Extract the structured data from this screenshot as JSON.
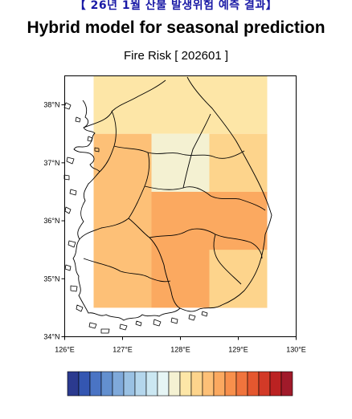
{
  "header": {
    "top_label": "【 26년 1월 산불 발생위험 예측 결과】",
    "title": "Hybrid model for seasonal prediction",
    "subtitle": "Fire Risk [ 202601 ]"
  },
  "map": {
    "lat_ticks": [
      "38°N",
      "37°N",
      "36°N",
      "35°N",
      "34°N"
    ],
    "lon_ticks": [
      "126°E",
      "127°E",
      "128°E",
      "129°E",
      "130°E"
    ],
    "grid_cells": [
      {
        "lon": [
          126.5,
          129.5
        ],
        "lat": [
          37.5,
          38.5
        ],
        "level": 0.53
      },
      {
        "lon": [
          126.5,
          127.5
        ],
        "lat": [
          34.5,
          37.5
        ],
        "level": 0.62
      },
      {
        "lon": [
          127.5,
          128.5
        ],
        "lat": [
          36.5,
          37.5
        ],
        "level": 0.46
      },
      {
        "lon": [
          128.5,
          129.5
        ],
        "lat": [
          36.5,
          37.5
        ],
        "level": 0.58
      },
      {
        "lon": [
          127.5,
          129.5
        ],
        "lat": [
          34.5,
          36.5
        ],
        "level": 0.66
      },
      {
        "lon": [
          128.5,
          129.5
        ],
        "lat": [
          34.5,
          35.5
        ],
        "level": 0.6
      }
    ]
  },
  "colorbar": {
    "colors": [
      "#2b3a8f",
      "#3456b1",
      "#4a74c4",
      "#6390cf",
      "#7fa9da",
      "#9ac1e3",
      "#b4d6ec",
      "#cbe7f2",
      "#e6f5f5",
      "#f4f1d2",
      "#fde6a7",
      "#fdd48c",
      "#fdc077",
      "#fba960",
      "#f8904c",
      "#f0743d",
      "#e4572f",
      "#d23a27",
      "#bb2222",
      "#a01a2a"
    ]
  }
}
